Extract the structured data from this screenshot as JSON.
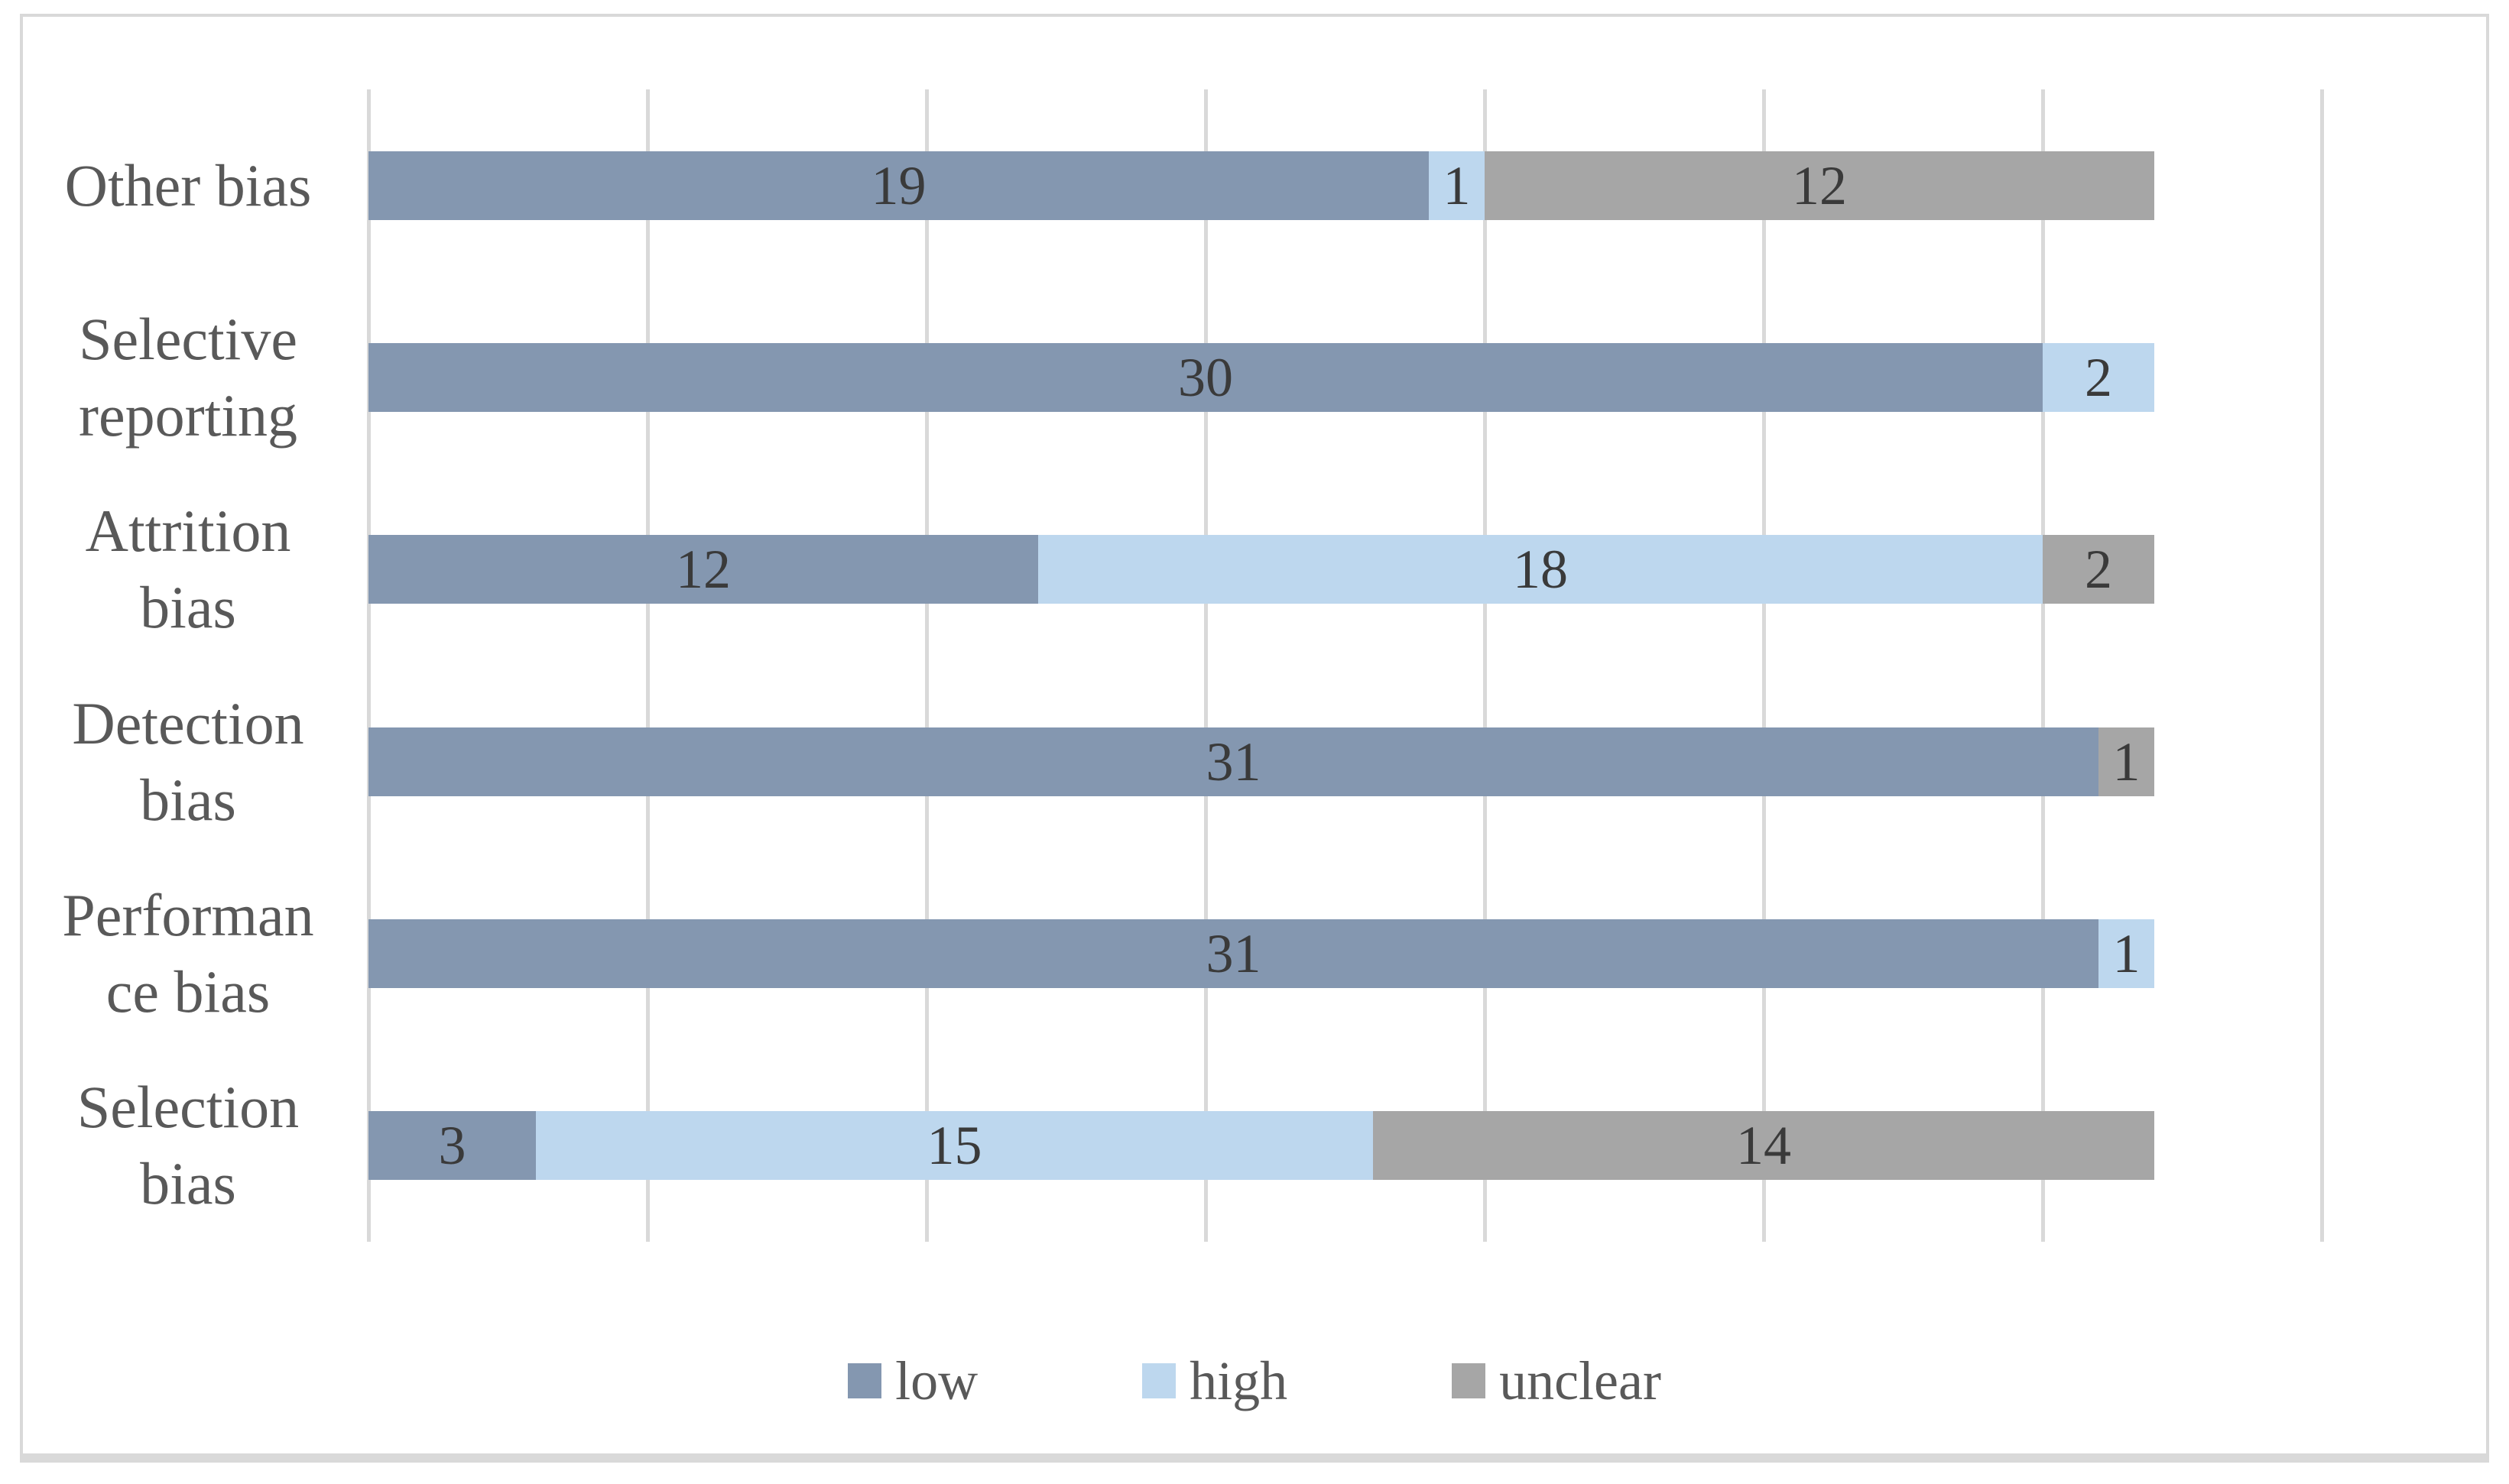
{
  "chart_data": {
    "type": "bar",
    "variant": "horizontal-stacked",
    "title": "",
    "xlabel": "",
    "ylabel": "",
    "categories": [
      "Other bias",
      "Selective reporting",
      "Attrition bias",
      "Detection bias",
      "Performance bias",
      "Selection bias"
    ],
    "category_label_lines": [
      [
        "Other bias"
      ],
      [
        "Selective",
        "reporting"
      ],
      [
        "Attrition",
        "bias"
      ],
      [
        "Detection",
        "bias"
      ],
      [
        "Performan",
        "ce bias"
      ],
      [
        "Selection",
        "bias"
      ]
    ],
    "series": [
      {
        "name": "low",
        "color": "#8497B0",
        "values": [
          19,
          30,
          12,
          31,
          31,
          3
        ]
      },
      {
        "name": "high",
        "color": "#BDD7EE",
        "values": [
          1,
          2,
          18,
          0,
          1,
          15
        ]
      },
      {
        "name": "unclear",
        "color": "#A6A6A6",
        "values": [
          12,
          0,
          2,
          1,
          0,
          14
        ]
      }
    ],
    "xlim": [
      0,
      35
    ],
    "grid_step": 5,
    "grid": true,
    "data_labels": true,
    "legend_position": "bottom",
    "legend": [
      "low",
      "high",
      "unclear"
    ],
    "colors": {
      "background": "#FFFFFF",
      "panel_border": "#D9D9D9",
      "gridline": "#D9D9D9",
      "category_label_text": "#595959",
      "data_label_text": "#3A3A3A",
      "legend_text": "#595959"
    }
  }
}
